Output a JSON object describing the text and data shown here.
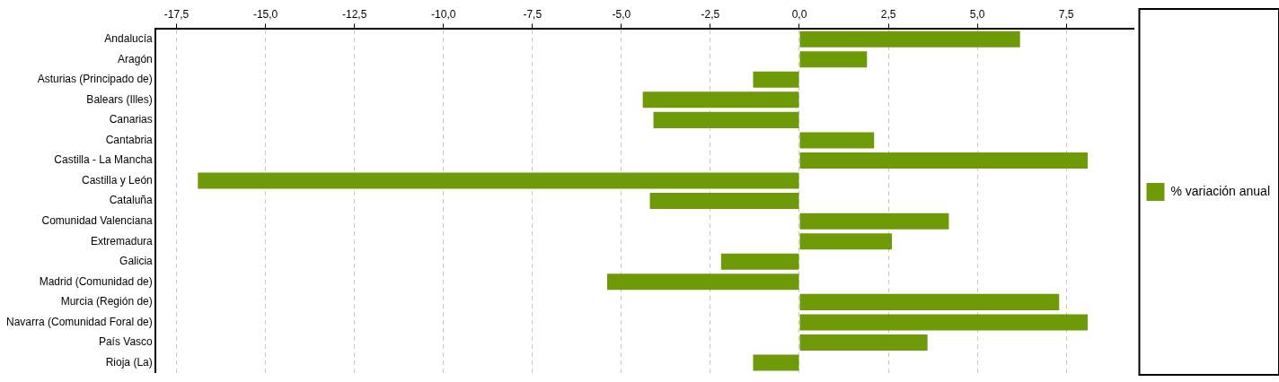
{
  "chart_data": {
    "type": "bar",
    "orientation": "horizontal",
    "categories": [
      "Andalucía",
      "Aragón",
      "Asturias (Principado de)",
      "Balears (Illes)",
      "Canarias",
      "Cantabria",
      "Castilla - La Mancha",
      "Castilla y León",
      "Cataluña",
      "Comunidad Valenciana",
      "Extremadura",
      "Galicia",
      "Madrid (Comunidad de)",
      "Murcia (Región de)",
      "Navarra (Comunidad Foral de)",
      "País Vasco",
      "Rioja (La)"
    ],
    "series": [
      {
        "name": "% variación anual",
        "color": "#6f9a07",
        "values": [
          6.2,
          1.9,
          -1.3,
          -4.4,
          -4.1,
          2.1,
          8.1,
          -16.9,
          -4.2,
          4.2,
          2.6,
          -2.2,
          -5.4,
          7.3,
          8.1,
          3.6,
          -1.3
        ]
      }
    ],
    "xlim": [
      -18.1,
      9.4
    ],
    "xticks": [
      {
        "value": -17.5,
        "label": "-17,5"
      },
      {
        "value": -15,
        "label": "-15,0"
      },
      {
        "value": -12.5,
        "label": "-12,5"
      },
      {
        "value": -10,
        "label": "-10,0"
      },
      {
        "value": -7.5,
        "label": "-7,5"
      },
      {
        "value": -5,
        "label": "-5,0"
      },
      {
        "value": -2.5,
        "label": "-2,5"
      },
      {
        "value": 0,
        "label": "0,0"
      },
      {
        "value": 2.5,
        "label": "2,5"
      },
      {
        "value": 5,
        "label": "5,0"
      },
      {
        "value": 7.5,
        "label": "7,5"
      }
    ],
    "grid": "x",
    "legend": "right"
  }
}
